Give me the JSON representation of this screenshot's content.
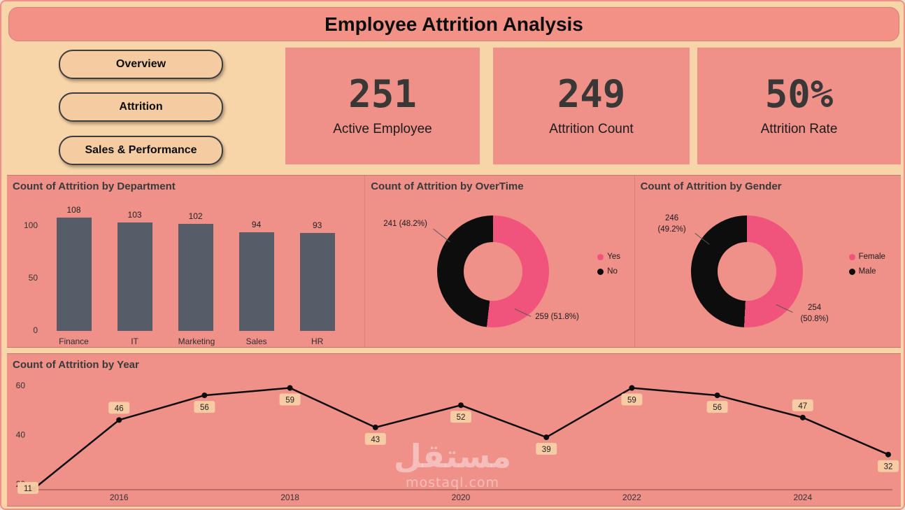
{
  "title": "Employee Attrition Analysis",
  "nav": {
    "buttons": [
      {
        "label": "Overview"
      },
      {
        "label": "Attrition"
      },
      {
        "label": "Sales & Performance"
      }
    ]
  },
  "kpis": [
    {
      "value": "251",
      "label": "Active Employee"
    },
    {
      "value": "249",
      "label": "Attrition Count"
    },
    {
      "value": "50%",
      "label": "Attrition Rate"
    }
  ],
  "colors": {
    "page_bg": "#f8d5a9",
    "panel": "#ef9089",
    "badge": "#f7cfa5"
  },
  "chart_data": [
    {
      "type": "bar",
      "title": "Count of Attrition by Department",
      "categories": [
        "Finance",
        "IT",
        "Marketing",
        "Sales",
        "HR"
      ],
      "values": [
        108,
        103,
        102,
        94,
        93
      ],
      "ylim": [
        0,
        110
      ],
      "yticks": [
        0,
        50,
        100
      ],
      "bar_color": "#565d69"
    },
    {
      "type": "pie",
      "title": "Count of Attrition by OverTime",
      "labels": [
        "Yes",
        "No"
      ],
      "values": [
        259,
        241
      ],
      "value_labels": [
        "259 (51.8%)",
        "241 (48.2%)"
      ],
      "colors": [
        "#f0537b",
        "#0d0d0d"
      ],
      "legend_position": "right"
    },
    {
      "type": "pie",
      "title": "Count of Attrition by Gender",
      "labels": [
        "Female",
        "Male"
      ],
      "values": [
        254,
        246
      ],
      "value_labels": [
        "254 (50.8%)",
        "246 (49.2%)"
      ],
      "colors": [
        "#f0537b",
        "#0d0d0d"
      ],
      "legend_position": "right"
    },
    {
      "type": "line",
      "title": "Count of Attrition by Year",
      "x": [
        2015,
        2016,
        2017,
        2018,
        2019,
        2020,
        2021,
        2022,
        2023,
        2024,
        2025
      ],
      "values": [
        11,
        46,
        56,
        59,
        43,
        52,
        39,
        59,
        56,
        47,
        32
      ],
      "xticks": [
        2016,
        2018,
        2020,
        2022,
        2024
      ],
      "yticks": [
        20,
        40,
        60
      ],
      "ylim": [
        10,
        65
      ],
      "line_color": "#0d0d0d",
      "label_positions": [
        "edge",
        "above",
        "below",
        "below",
        "below",
        "below",
        "below",
        "below",
        "below",
        "above",
        "below"
      ]
    }
  ],
  "watermark": {
    "arabic": "مستقل",
    "domain": "mostaql.com"
  }
}
